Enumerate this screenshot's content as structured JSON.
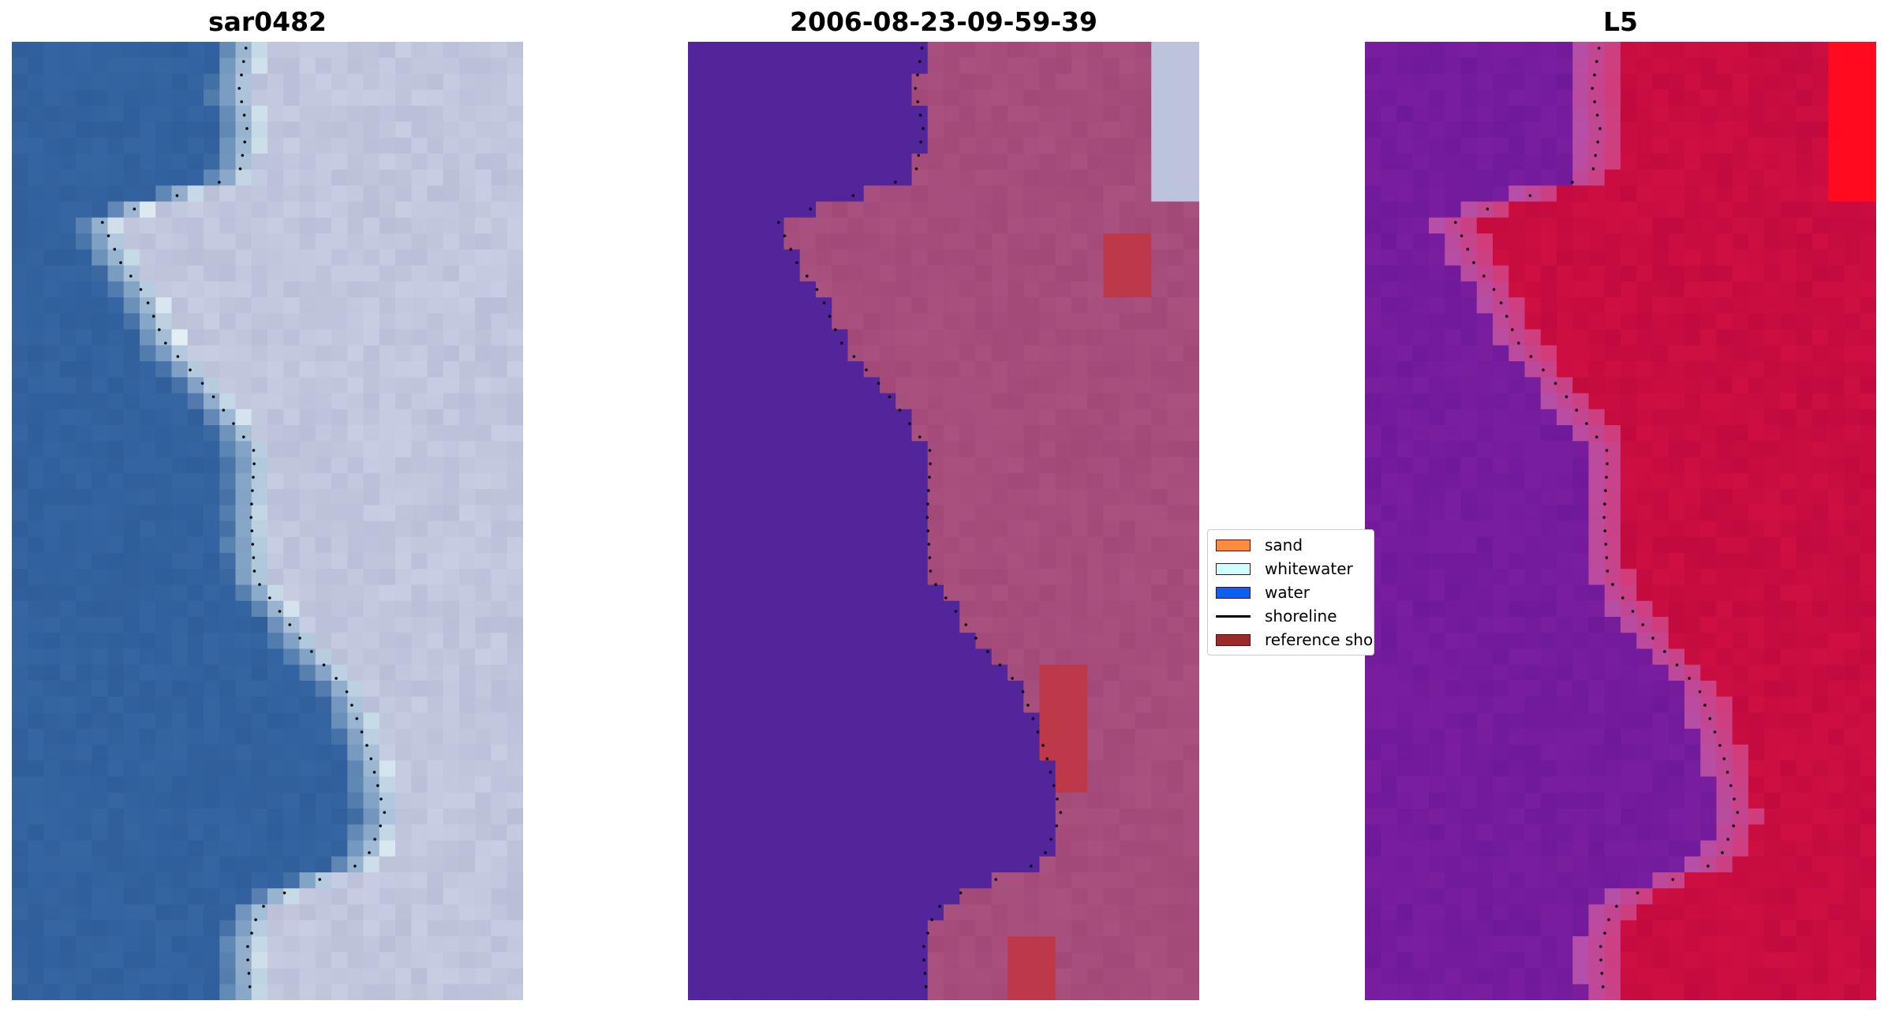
{
  "panels": [
    {
      "title": "sar0482"
    },
    {
      "title": "2006-08-23-09-59-39"
    },
    {
      "title": "L5"
    }
  ],
  "legend": {
    "location": "center-right",
    "items": [
      {
        "label": "sand",
        "color": "#ff8c3c",
        "kind": "patch"
      },
      {
        "label": "whitewater",
        "color": "#ccfffe",
        "kind": "patch"
      },
      {
        "label": "water",
        "color": "#0d5ff2",
        "kind": "patch"
      },
      {
        "label": "shoreline",
        "color": "#000000",
        "kind": "line"
      },
      {
        "label": "reference shoreline",
        "color": "#9b2a2a",
        "kind": "patch"
      }
    ]
  },
  "colors": {
    "water_rgb": "#2f5e9b",
    "land_rgb": "#b9bfd6",
    "class_water": "#52259a",
    "class_land": "#a9517f",
    "class_ref": "#bd3848",
    "index_water": "#7a1e9e",
    "index_land": "#c20a3e"
  }
}
